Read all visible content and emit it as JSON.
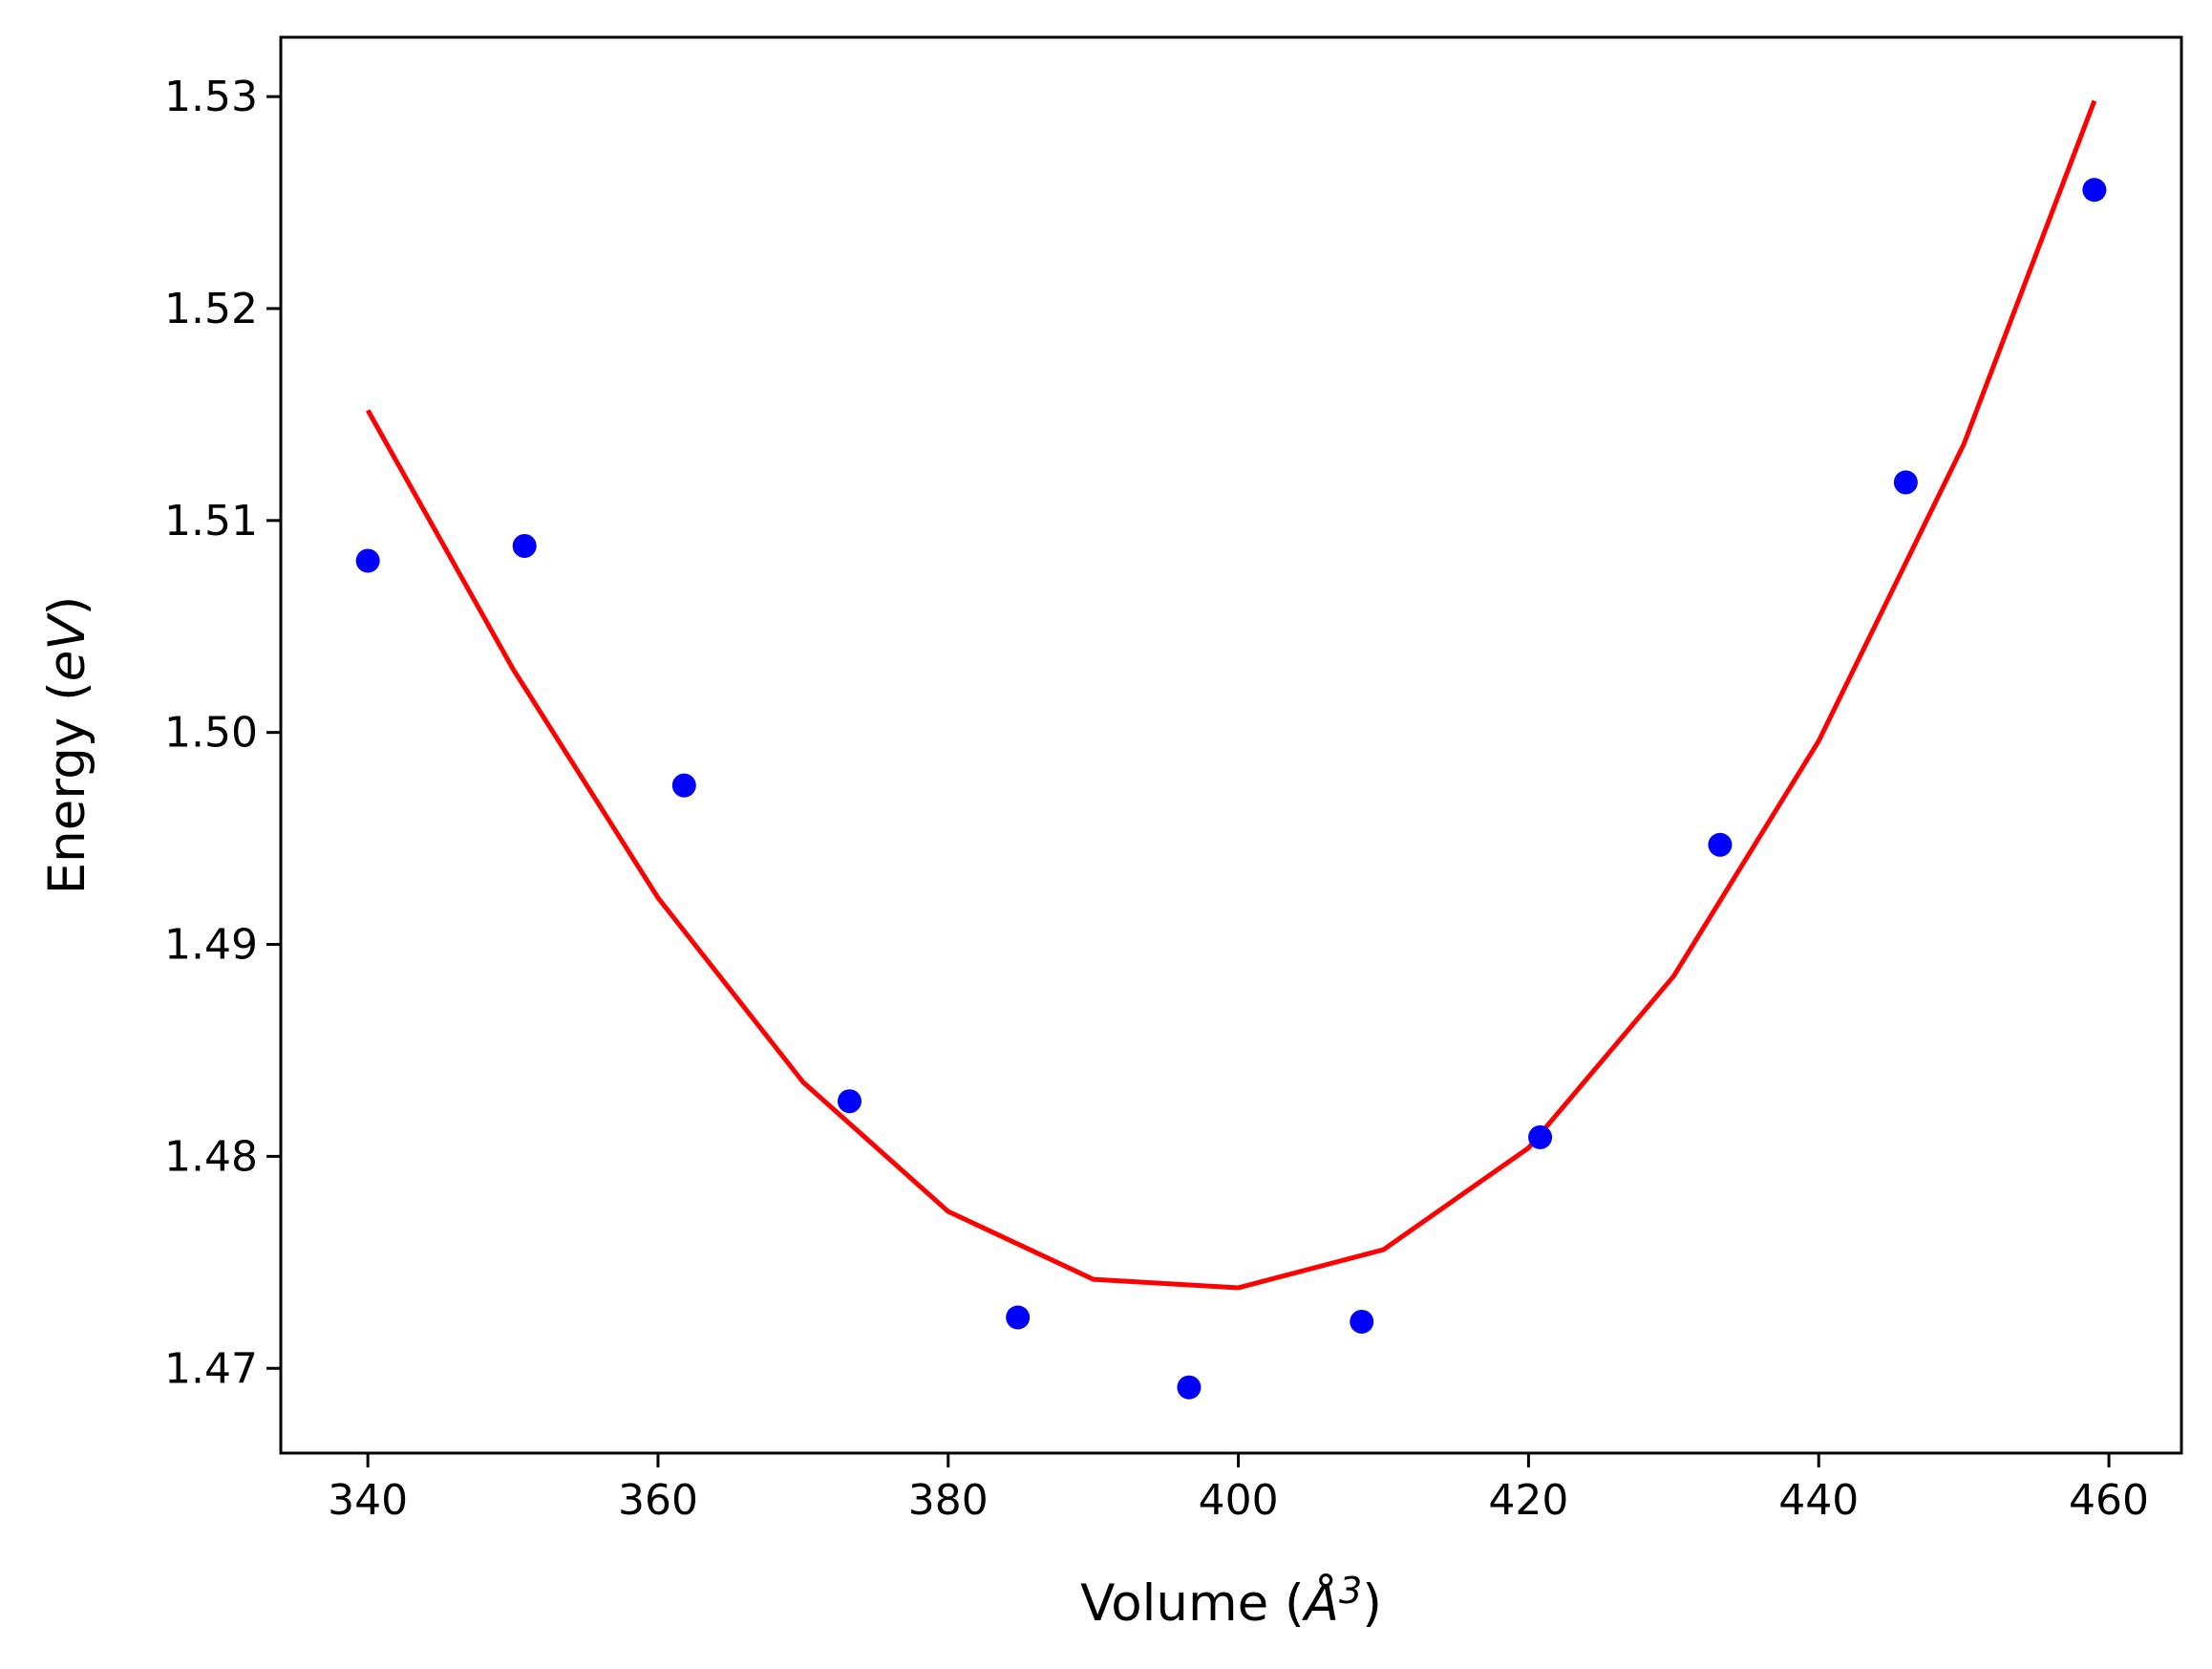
{
  "chart_data": {
    "type": "scatter",
    "title": "",
    "xlabel": {
      "prefix": "Volume (",
      "unit_symbol": "Å",
      "superscript": "3",
      "suffix": ")"
    },
    "ylabel": {
      "prefix": "Energy (",
      "unit": "eV",
      "suffix": ")"
    },
    "xlim": [
      334,
      465
    ],
    "ylim": [
      1.466,
      1.5328
    ],
    "xticks": [
      {
        "value": 340,
        "label": "340"
      },
      {
        "value": 360,
        "label": "360"
      },
      {
        "value": 380,
        "label": "380"
      },
      {
        "value": 400,
        "label": "400"
      },
      {
        "value": 420,
        "label": "420"
      },
      {
        "value": 440,
        "label": "440"
      },
      {
        "value": 460,
        "label": "460"
      }
    ],
    "yticks": [
      {
        "value": 1.47,
        "label": "1.47"
      },
      {
        "value": 1.48,
        "label": "1.48"
      },
      {
        "value": 1.49,
        "label": "1.49"
      },
      {
        "value": 1.5,
        "label": "1.50"
      },
      {
        "value": 1.51,
        "label": "1.51"
      },
      {
        "value": 1.52,
        "label": "1.52"
      },
      {
        "value": 1.53,
        "label": "1.53"
      }
    ],
    "grid": false,
    "series": [
      {
        "kind": "scatter",
        "color": "#0000ff",
        "x": [
          340.0,
          350.8,
          361.8,
          373.2,
          384.8,
          396.6,
          408.5,
          420.8,
          433.2,
          446.0,
          459.0
        ],
        "y": [
          1.5081,
          1.5088,
          1.4975,
          1.4826,
          1.4724,
          1.4691,
          1.4722,
          1.4809,
          1.4947,
          1.5118,
          1.5256
        ]
      },
      {
        "kind": "line",
        "color": "#ff0000",
        "x": [
          340,
          350,
          360,
          370,
          380,
          390,
          400,
          410,
          420,
          430,
          440,
          450,
          459
        ],
        "y": [
          1.5152,
          1.503,
          1.4922,
          1.4835,
          1.4774,
          1.4742,
          1.4738,
          1.4756,
          1.4804,
          1.4885,
          1.4996,
          1.5136,
          1.5298
        ]
      }
    ]
  }
}
